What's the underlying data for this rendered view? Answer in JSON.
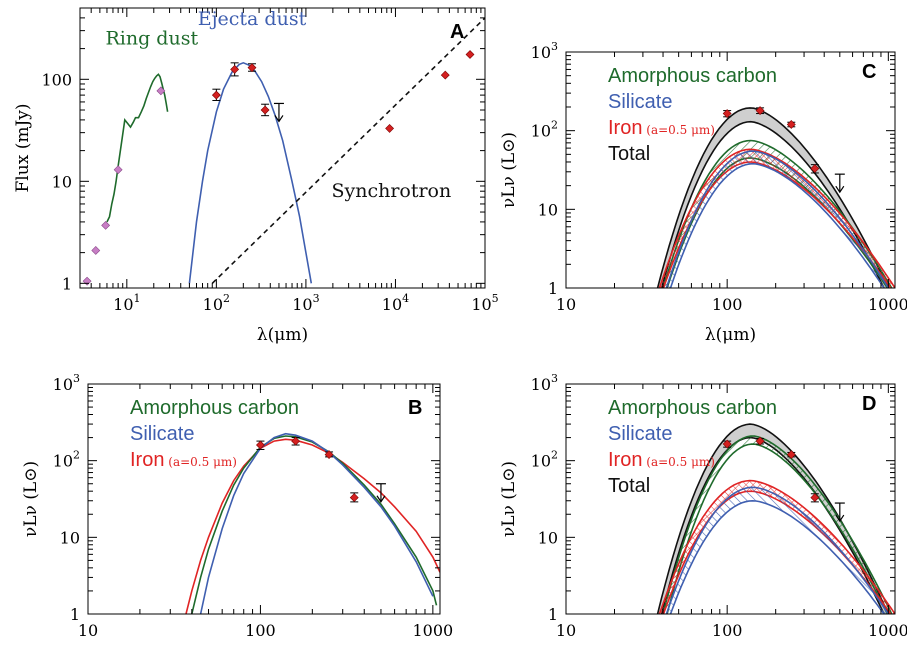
{
  "colors": {
    "green": "#1f6b2c",
    "blue": "#3f5fb0",
    "red": "#e02424",
    "black": "#111111",
    "gray": "#cfcfcf",
    "magenta": "#c77ec4",
    "point": "#d42020"
  },
  "chart_data": [
    {
      "id": "A",
      "panel_label": "A",
      "type": "line",
      "xscale": "log",
      "yscale": "log",
      "xlim": [
        3,
        100000
      ],
      "ylim": [
        0.9,
        500
      ],
      "xlabel": "λ(μm)",
      "ylabel": "Flux (mJy)",
      "xticks": [
        {
          "v": 10,
          "b": "10",
          "e": "1"
        },
        {
          "v": 100,
          "b": "10",
          "e": "2"
        },
        {
          "v": 1000,
          "b": "10",
          "e": "3"
        },
        {
          "v": 10000,
          "b": "10",
          "e": "4"
        },
        {
          "v": 100000,
          "b": "10",
          "e": "5"
        }
      ],
      "yticks": [
        {
          "v": 1,
          "t": "1"
        },
        {
          "v": 10,
          "t": "10"
        },
        {
          "v": 100,
          "t": "100"
        }
      ],
      "annotations": [
        {
          "text": "Ring dust",
          "color": "green",
          "x": 19,
          "y": 220
        },
        {
          "text": "Ejecta dust",
          "color": "blue",
          "x": 250,
          "y": 340
        },
        {
          "text": "Synchrotron",
          "color": "black",
          "x": 9000,
          "y": 7
        }
      ],
      "series": [
        {
          "kind": "curve",
          "color": "green",
          "x": [
            8,
            8.8,
            9.5,
            10.2,
            11,
            11.8,
            12.5,
            13.5,
            14.5,
            15.5,
            16.5,
            17.5,
            18.5,
            19.5,
            20.5,
            21.5,
            22.5,
            23.5,
            24.5,
            25.5,
            26.5,
            27.5,
            28.5
          ],
          "y": [
            14,
            25,
            40,
            37,
            34,
            38,
            42,
            42,
            48,
            55,
            65,
            75,
            85,
            95,
            102,
            108,
            112,
            106,
            92,
            80,
            70,
            58,
            48
          ]
        },
        {
          "kind": "curve",
          "color": "green",
          "x": [
            6,
            6.4,
            6.8,
            7.2,
            7.6,
            8
          ],
          "y": [
            4,
            4.5,
            6,
            7.5,
            10,
            14
          ]
        },
        {
          "kind": "curve",
          "color": "blue",
          "x": [
            50,
            60,
            70,
            80,
            100,
            120,
            150,
            180,
            200,
            230,
            270,
            320,
            380,
            450,
            550,
            700,
            850,
            1000,
            1150
          ],
          "y": [
            1,
            4,
            10,
            20,
            48,
            80,
            118,
            140,
            145,
            138,
            120,
            95,
            68,
            45,
            25,
            10,
            4.5,
            2,
            1
          ]
        },
        {
          "kind": "dashed",
          "color": "black",
          "x": [
            90,
            100000
          ],
          "y": [
            1,
            400
          ]
        }
      ],
      "points": [
        {
          "x": 3.6,
          "y": 1.05,
          "color": "magenta",
          "shape": "diamond"
        },
        {
          "x": 4.5,
          "y": 2.1,
          "color": "magenta",
          "shape": "diamond"
        },
        {
          "x": 5.8,
          "y": 3.7,
          "color": "magenta",
          "shape": "diamond"
        },
        {
          "x": 8,
          "y": 13,
          "color": "magenta",
          "shape": "diamond"
        },
        {
          "x": 24,
          "y": 77,
          "color": "magenta",
          "shape": "diamond"
        },
        {
          "x": 100,
          "y": 70,
          "color": "point",
          "shape": "diamond",
          "err": [
            62,
            80
          ]
        },
        {
          "x": 160,
          "y": 125,
          "color": "point",
          "shape": "diamond",
          "err": [
            108,
            145
          ]
        },
        {
          "x": 250,
          "y": 130,
          "color": "point",
          "shape": "diamond",
          "err": [
            120,
            142
          ]
        },
        {
          "x": 350,
          "y": 50,
          "color": "point",
          "shape": "diamond",
          "err": [
            44,
            57
          ]
        },
        {
          "x": 8600,
          "y": 33,
          "color": "point",
          "shape": "diamond"
        },
        {
          "x": 36000,
          "y": 110,
          "color": "point",
          "shape": "diamond"
        },
        {
          "x": 68000,
          "y": 175,
          "color": "point",
          "shape": "diamond"
        }
      ],
      "upper_limits": [
        {
          "x": 500,
          "y": 58
        }
      ]
    },
    {
      "id": "B",
      "panel_label": "B",
      "type": "line",
      "xscale": "log",
      "yscale": "log",
      "xlim": [
        10,
        1100
      ],
      "ylim": [
        1,
        1000
      ],
      "ylabel": "νLν (L⊙)",
      "xticks": [
        {
          "v": 10,
          "t": "10"
        },
        {
          "v": 100,
          "t": "100"
        },
        {
          "v": 1000,
          "t": "1000"
        }
      ],
      "yticks": [
        {
          "v": 1,
          "t": "1"
        },
        {
          "v": 10,
          "t": "10"
        },
        {
          "v": 100,
          "b": "10",
          "e": "2"
        },
        {
          "v": 1000,
          "b": "10",
          "e": "3"
        }
      ],
      "legend": [
        {
          "text": "Amorphous carbon",
          "color": "green"
        },
        {
          "text": "Silicate",
          "color": "blue"
        },
        {
          "text": "Iron",
          "color": "red",
          "small": "(a=0.5 μm)"
        }
      ],
      "series": [
        {
          "kind": "curve",
          "color": "red",
          "x": [
            37,
            40,
            45,
            50,
            60,
            70,
            80,
            100,
            120,
            140,
            160,
            200,
            250,
            300,
            400,
            500,
            600,
            800,
            1000,
            1100
          ],
          "y": [
            1,
            2,
            5,
            10,
            28,
            55,
            85,
            145,
            180,
            190,
            185,
            160,
            125,
            95,
            58,
            38,
            25,
            12,
            5.5,
            3.5
          ]
        },
        {
          "kind": "curve",
          "color": "green",
          "x": [
            40,
            45,
            50,
            60,
            70,
            80,
            100,
            120,
            140,
            160,
            200,
            250,
            300,
            400,
            500,
            600,
            800,
            1000,
            1050
          ],
          "y": [
            1,
            3,
            7,
            22,
            48,
            80,
            150,
            195,
            210,
            205,
            175,
            130,
            92,
            48,
            27,
            15,
            5.5,
            2,
            1.3
          ]
        },
        {
          "kind": "curve",
          "color": "blue",
          "x": [
            45,
            50,
            60,
            70,
            80,
            100,
            120,
            140,
            160,
            200,
            250,
            300,
            400,
            500,
            600,
            800,
            1000
          ],
          "y": [
            1,
            3,
            13,
            35,
            68,
            145,
            200,
            225,
            215,
            180,
            128,
            88,
            45,
            25,
            14,
            4.8,
            1.7
          ]
        }
      ],
      "points": [
        {
          "x": 100,
          "y": 160,
          "err": [
            140,
            180
          ]
        },
        {
          "x": 160,
          "y": 180,
          "err": [
            160,
            200
          ]
        },
        {
          "x": 250,
          "y": 120,
          "err": [
            112,
            130
          ]
        },
        {
          "x": 350,
          "y": 33,
          "err": [
            29,
            38
          ]
        }
      ],
      "upper_limits": [
        {
          "x": 500,
          "y": 50
        }
      ]
    },
    {
      "id": "C",
      "panel_label": "C",
      "type": "area",
      "xscale": "log",
      "yscale": "log",
      "xlim": [
        10,
        1100
      ],
      "ylim": [
        1,
        1000
      ],
      "xlabel": "λ(μm)",
      "ylabel": "νLν (L⊙)",
      "xticks": [
        {
          "v": 10,
          "t": "10"
        },
        {
          "v": 100,
          "t": "100"
        },
        {
          "v": 1000,
          "t": "1000"
        }
      ],
      "yticks": [
        {
          "v": 1,
          "t": "1"
        },
        {
          "v": 10,
          "t": "10"
        },
        {
          "v": 100,
          "b": "10",
          "e": "2"
        },
        {
          "v": 1000,
          "b": "10",
          "e": "3"
        }
      ],
      "legend": [
        {
          "text": "Amorphous carbon",
          "color": "green"
        },
        {
          "text": "Silicate",
          "color": "blue"
        },
        {
          "text": "Iron",
          "color": "red",
          "small": "(a=0.5 μm)"
        },
        {
          "text": "Total",
          "color": "black"
        }
      ],
      "bands": [
        {
          "color": "black",
          "fill": "gray",
          "peak_lo": 130,
          "peak_hi": 195,
          "x0": 37,
          "x1": 1000,
          "xp": 140
        },
        {
          "color": "green",
          "fill": "hatch",
          "peak_lo": 45,
          "peak_hi": 75,
          "x0": 40,
          "x1": 1050,
          "xp": 140
        },
        {
          "color": "red",
          "fill": "hatch",
          "peak_lo": 40,
          "peak_hi": 58,
          "x0": 38,
          "x1": 1100,
          "xp": 140
        },
        {
          "color": "blue",
          "fill": "hatch",
          "peak_lo": 38,
          "peak_hi": 55,
          "x0": 42,
          "x1": 1000,
          "xp": 145
        }
      ],
      "points": [
        {
          "x": 100,
          "y": 165,
          "err": [
            150,
            180
          ]
        },
        {
          "x": 160,
          "y": 180,
          "err": [
            165,
            195
          ]
        },
        {
          "x": 250,
          "y": 120,
          "err": [
            112,
            128
          ]
        },
        {
          "x": 350,
          "y": 33,
          "err": [
            29,
            37
          ]
        }
      ],
      "upper_limits": [
        {
          "x": 500,
          "y": 28
        }
      ]
    },
    {
      "id": "D",
      "panel_label": "D",
      "type": "area",
      "xscale": "log",
      "yscale": "log",
      "xlim": [
        10,
        1100
      ],
      "ylim": [
        1,
        1000
      ],
      "ylabel": "νLν (L⊙)",
      "xticks": [
        {
          "v": 10,
          "t": "10"
        },
        {
          "v": 100,
          "t": "100"
        },
        {
          "v": 1000,
          "t": "1000"
        }
      ],
      "yticks": [
        {
          "v": 1,
          "t": "1"
        },
        {
          "v": 10,
          "t": "10"
        },
        {
          "v": 100,
          "b": "10",
          "e": "2"
        },
        {
          "v": 1000,
          "b": "10",
          "e": "3"
        }
      ],
      "legend": [
        {
          "text": "Amorphous carbon",
          "color": "green"
        },
        {
          "text": "Silicate",
          "color": "blue"
        },
        {
          "text": "Iron",
          "color": "red",
          "small": "(a=0.5 μm)"
        },
        {
          "text": "Total",
          "color": "black"
        }
      ],
      "bands": [
        {
          "color": "black",
          "fill": "gray",
          "peak_lo": 200,
          "peak_hi": 300,
          "x0": 37,
          "x1": 1000,
          "xp": 140
        },
        {
          "color": "green",
          "fill": "hatch",
          "peak_lo": 165,
          "peak_hi": 210,
          "x0": 40,
          "x1": 1050,
          "xp": 145
        },
        {
          "color": "red",
          "fill": "hatch",
          "peak_lo": 40,
          "peak_hi": 55,
          "x0": 38,
          "x1": 1100,
          "xp": 140
        },
        {
          "color": "blue",
          "fill": "hatch",
          "peak_lo": 30,
          "peak_hi": 45,
          "x0": 42,
          "x1": 1000,
          "xp": 145
        }
      ],
      "points": [
        {
          "x": 100,
          "y": 165,
          "err": [
            150,
            180
          ]
        },
        {
          "x": 160,
          "y": 180,
          "err": [
            165,
            195
          ]
        },
        {
          "x": 250,
          "y": 120,
          "err": [
            112,
            128
          ]
        },
        {
          "x": 350,
          "y": 33,
          "err": [
            29,
            37
          ]
        }
      ],
      "upper_limits": [
        {
          "x": 500,
          "y": 28
        }
      ]
    }
  ]
}
